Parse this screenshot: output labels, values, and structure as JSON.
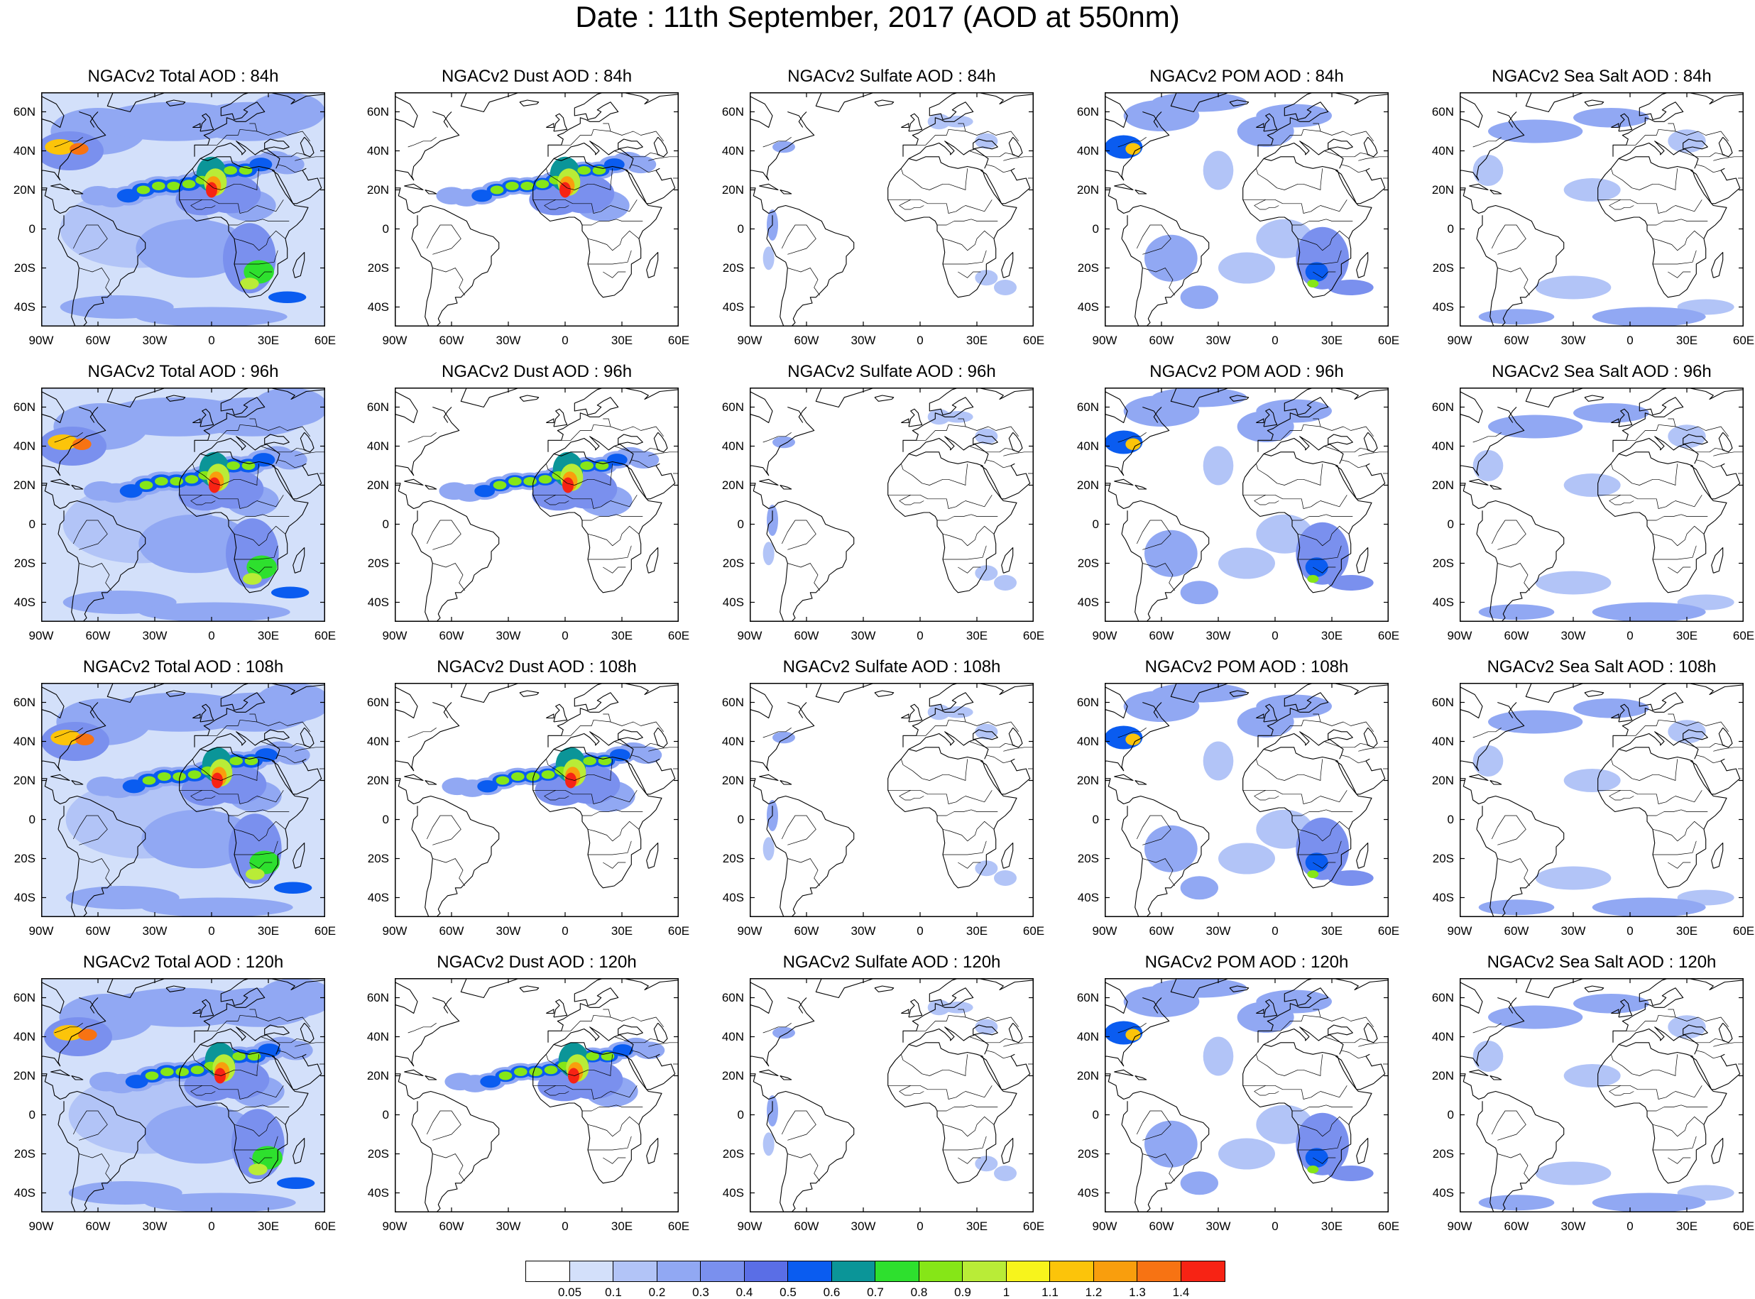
{
  "title": "Date : 11th September, 2017 (AOD at 550nm)",
  "map": {
    "lat_ticks": [
      "60N",
      "40N",
      "20N",
      "0",
      "20S",
      "40S"
    ],
    "lon_ticks": [
      "90W",
      "60W",
      "30W",
      "0",
      "30E",
      "60E"
    ]
  },
  "rows": [
    {
      "forecast_hour": "84h",
      "titles": [
        "NGACv2 Total AOD : 84h",
        "NGACv2 Dust AOD : 84h",
        "NGACv2 Sulfate AOD : 84h",
        "NGACv2 POM AOD : 84h",
        "NGACv2 Sea Salt AOD : 84h"
      ]
    },
    {
      "forecast_hour": "96h",
      "titles": [
        "NGACv2 Total AOD : 96h",
        "NGACv2 Dust AOD : 96h",
        "NGACv2 Sulfate AOD : 96h",
        "NGACv2 POM AOD : 96h",
        "NGACv2 Sea Salt AOD : 96h"
      ]
    },
    {
      "forecast_hour": "108h",
      "titles": [
        "NGACv2 Total AOD : 108h",
        "NGACv2 Dust AOD : 108h",
        "NGACv2 Sulfate AOD : 108h",
        "NGACv2 POM AOD : 108h",
        "NGACv2 Sea Salt AOD : 108h"
      ]
    },
    {
      "forecast_hour": "120h",
      "titles": [
        "NGACv2 Total AOD : 120h",
        "NGACv2 Dust AOD : 120h",
        "NGACv2 Sulfate AOD : 120h",
        "NGACv2 POM AOD : 120h",
        "NGACv2 Sea Salt AOD : 120h"
      ]
    }
  ],
  "colorbar": {
    "labels": [
      "0.05",
      "0.1",
      "0.2",
      "0.3",
      "0.4",
      "0.5",
      "0.6",
      "0.7",
      "0.8",
      "0.9",
      "1",
      "1.1",
      "1.2",
      "1.3",
      "1.4"
    ],
    "colors": [
      "#ffffff",
      "#d3e0fa",
      "#b2c4f7",
      "#91a8f3",
      "#7a90ee",
      "#5a6ee6",
      "#0a5cf0",
      "#0b9598",
      "#2ee02e",
      "#86e617",
      "#b9ec37",
      "#f7f41c",
      "#fcc40a",
      "#f99e0d",
      "#f77313",
      "#f72314"
    ]
  }
}
